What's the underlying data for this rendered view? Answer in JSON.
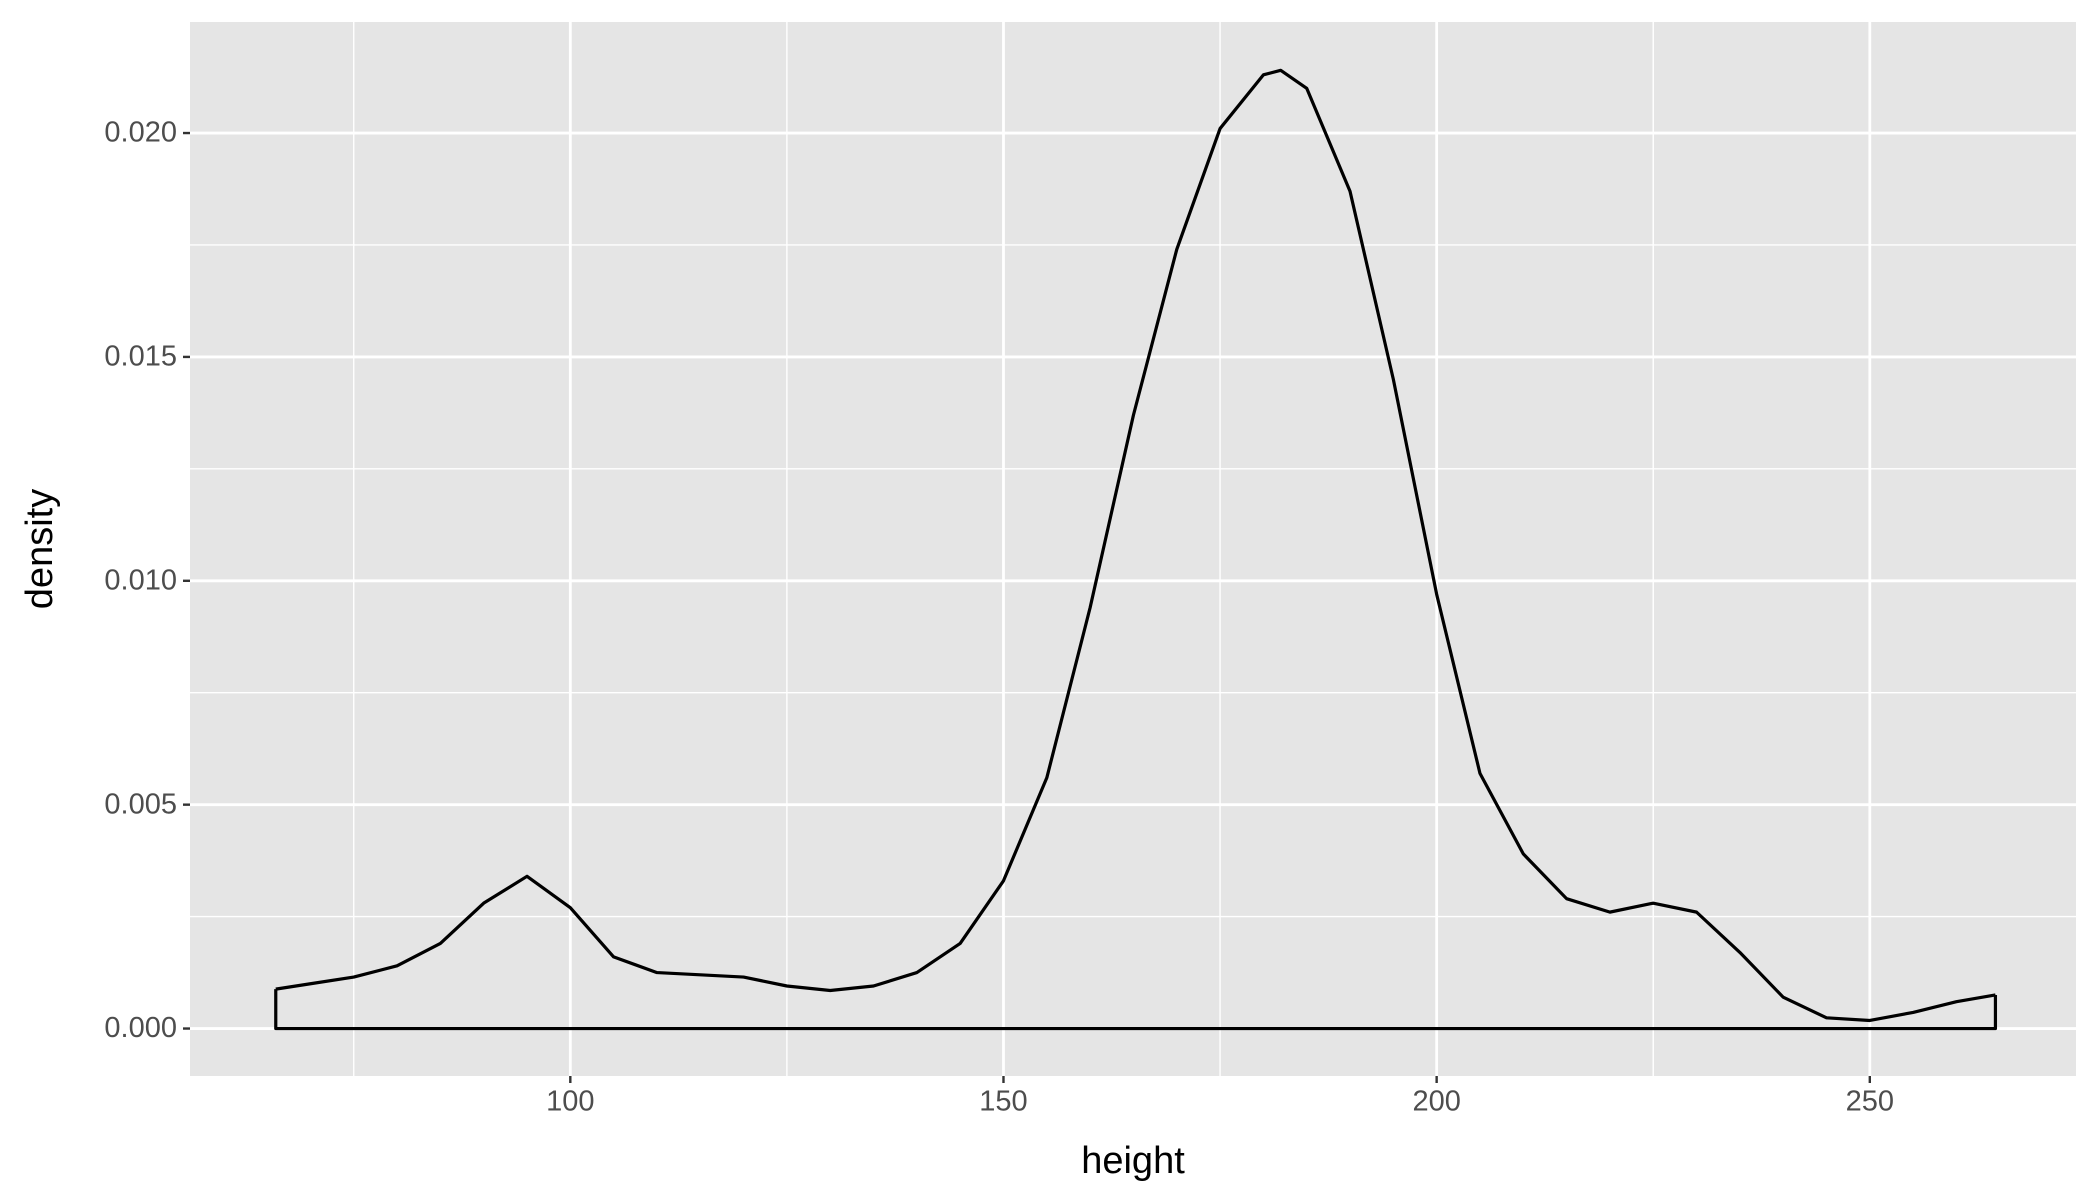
{
  "chart_data": {
    "type": "density",
    "x_label": "height",
    "y_label": "density",
    "series": [
      {
        "color": "#000000",
        "x": [
          66,
          70,
          75,
          80,
          85,
          90,
          95,
          100,
          105,
          110,
          115,
          120,
          125,
          130,
          135,
          140,
          145,
          150,
          155,
          160,
          165,
          170,
          175,
          180,
          182,
          185,
          190,
          195,
          200,
          205,
          210,
          215,
          220,
          225,
          230,
          235,
          240,
          245,
          250,
          255,
          260,
          264.5
        ],
        "values": [
          0.00088,
          0.001,
          0.00115,
          0.0014,
          0.0019,
          0.0028,
          0.0034,
          0.0027,
          0.0016,
          0.00125,
          0.0012,
          0.00115,
          0.00095,
          0.00085,
          0.00095,
          0.00125,
          0.0019,
          0.0033,
          0.0056,
          0.0094,
          0.0137,
          0.0174,
          0.0201,
          0.0213,
          0.0214,
          0.021,
          0.0187,
          0.0145,
          0.0097,
          0.0057,
          0.0039,
          0.0029,
          0.0026,
          0.0028,
          0.0026,
          0.0017,
          0.0007,
          0.00024,
          0.00018,
          0.00036,
          0.0006,
          0.00075
        ]
      }
    ],
    "xlim": [
      56.1,
      273.8
    ],
    "ylim": [
      -0.00106,
      0.02248
    ],
    "xticks": [
      100,
      150,
      200,
      250
    ],
    "x_minor_ticks": [
      75,
      125,
      175,
      225
    ],
    "yticks": [
      {
        "value": 0,
        "label": "0.000"
      },
      {
        "value": 0.005,
        "label": "0.005"
      },
      {
        "value": 0.01,
        "label": "0.010"
      },
      {
        "value": 0.015,
        "label": "0.015"
      },
      {
        "value": 0.02,
        "label": "0.020"
      }
    ],
    "y_minor_ticks": [
      0.0025,
      0.0075,
      0.0125,
      0.0175
    ],
    "grid": true,
    "panel_color": "#e5e5e5",
    "grid_color": "#ffffff"
  }
}
